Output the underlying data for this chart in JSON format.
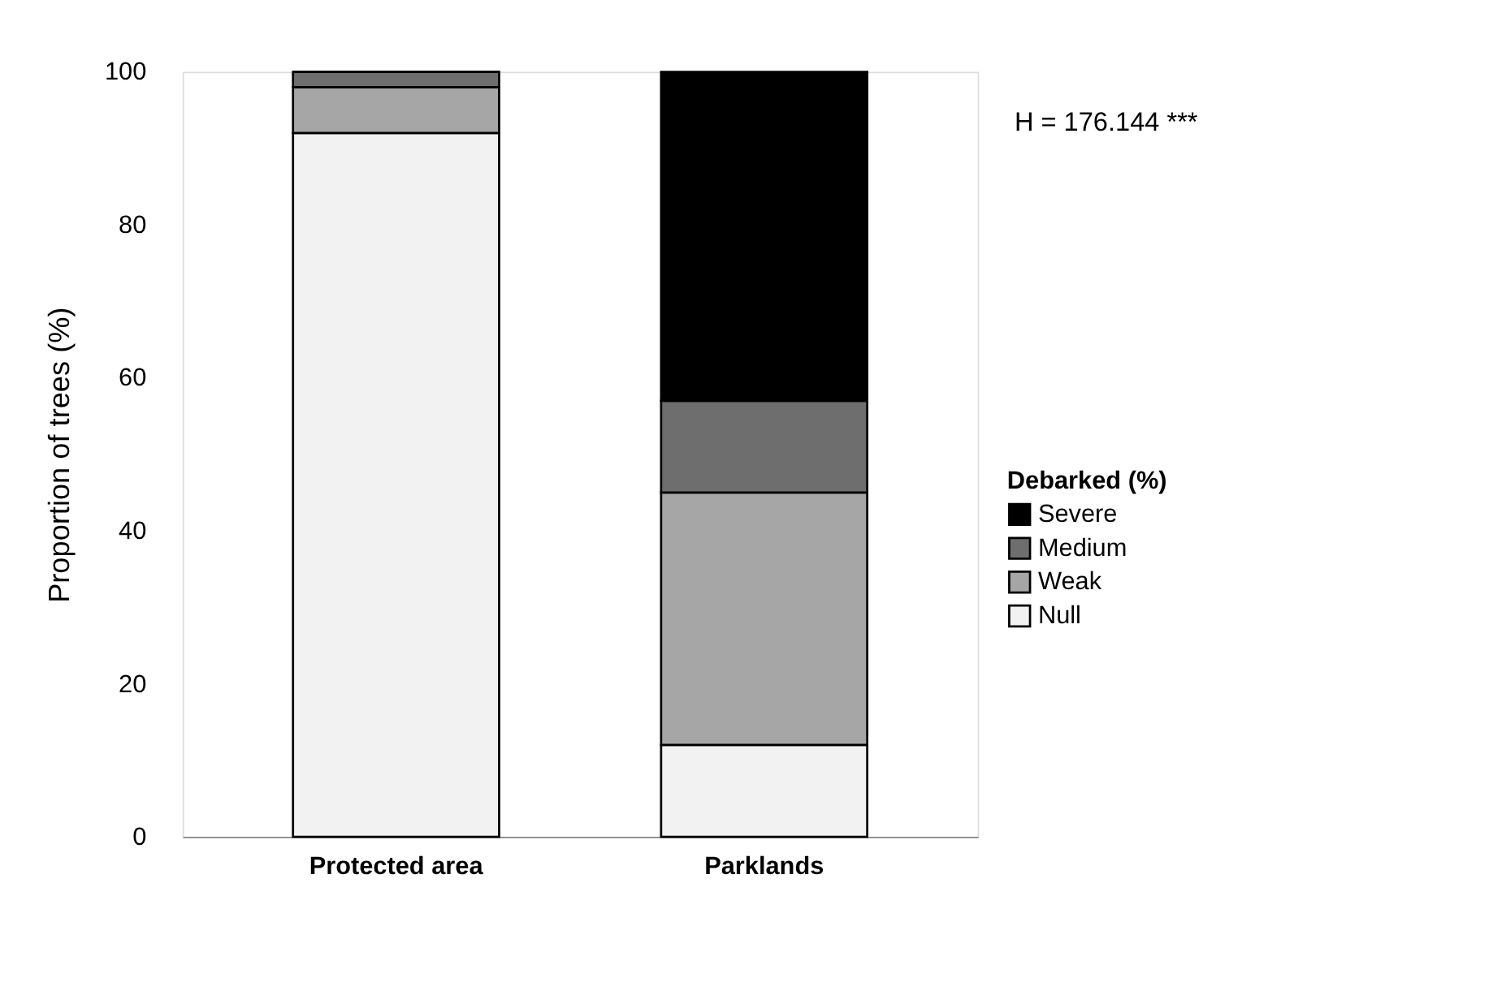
{
  "chart_data": {
    "type": "bar",
    "stacked": true,
    "ylabel": "Proportion of trees (%)",
    "legend_title": "Debarked (%)",
    "legend": "right",
    "categories": [
      "Protected area",
      "Parklands"
    ],
    "series": [
      {
        "name": "Null",
        "color": "#f2f2f2",
        "values": [
          92,
          12
        ]
      },
      {
        "name": "Weak",
        "color": "#a6a6a6",
        "values": [
          6,
          33
        ]
      },
      {
        "name": "Medium",
        "color": "#6e6e6e",
        "values": [
          2,
          12
        ]
      },
      {
        "name": "Severe",
        "color": "#000000",
        "values": [
          0,
          43
        ]
      }
    ],
    "ylim": [
      0,
      100
    ],
    "yticks": [
      0,
      20,
      40,
      60,
      80,
      100
    ],
    "grid": false,
    "annotations": [
      "H = 176.144 ***"
    ]
  }
}
